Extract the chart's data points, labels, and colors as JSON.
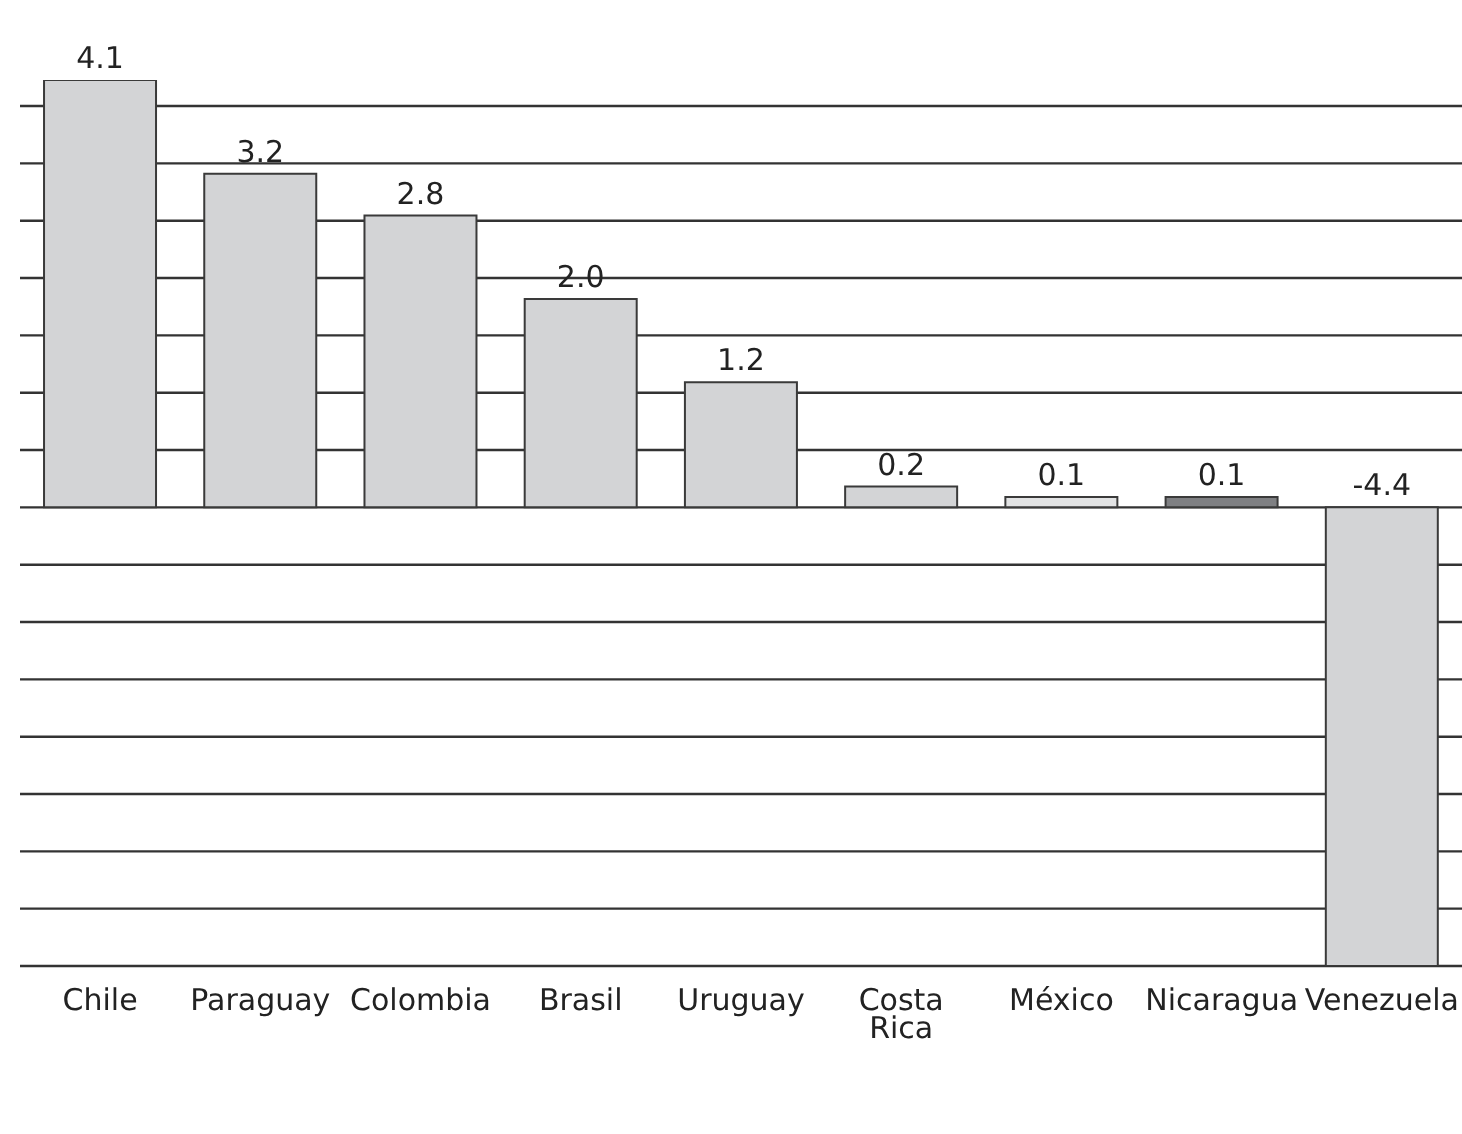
{
  "chart_data": {
    "type": "bar",
    "categories": [
      "Chile",
      "Paraguay",
      "Colombia",
      "Brasil",
      "Uruguay",
      "Costa Rica",
      "México",
      "Nicaragua",
      "Venezuela"
    ],
    "values": [
      4.1,
      3.2,
      2.8,
      2.0,
      1.2,
      0.2,
      0.1,
      0.1,
      -4.4
    ],
    "value_labels": [
      "4.1",
      "3.2",
      "2.8",
      "2.0",
      "1.2",
      "0.2",
      "0.1",
      "0.1",
      "-4.4"
    ],
    "colors": [
      "#d3d4d6",
      "#d3d4d6",
      "#d3d4d6",
      "#d3d4d6",
      "#d3d4d6",
      "#d3d4d6",
      "#e2e3e4",
      "#7f8083",
      "#d3d4d6"
    ],
    "grid": "y",
    "tick_labels": "x"
  }
}
